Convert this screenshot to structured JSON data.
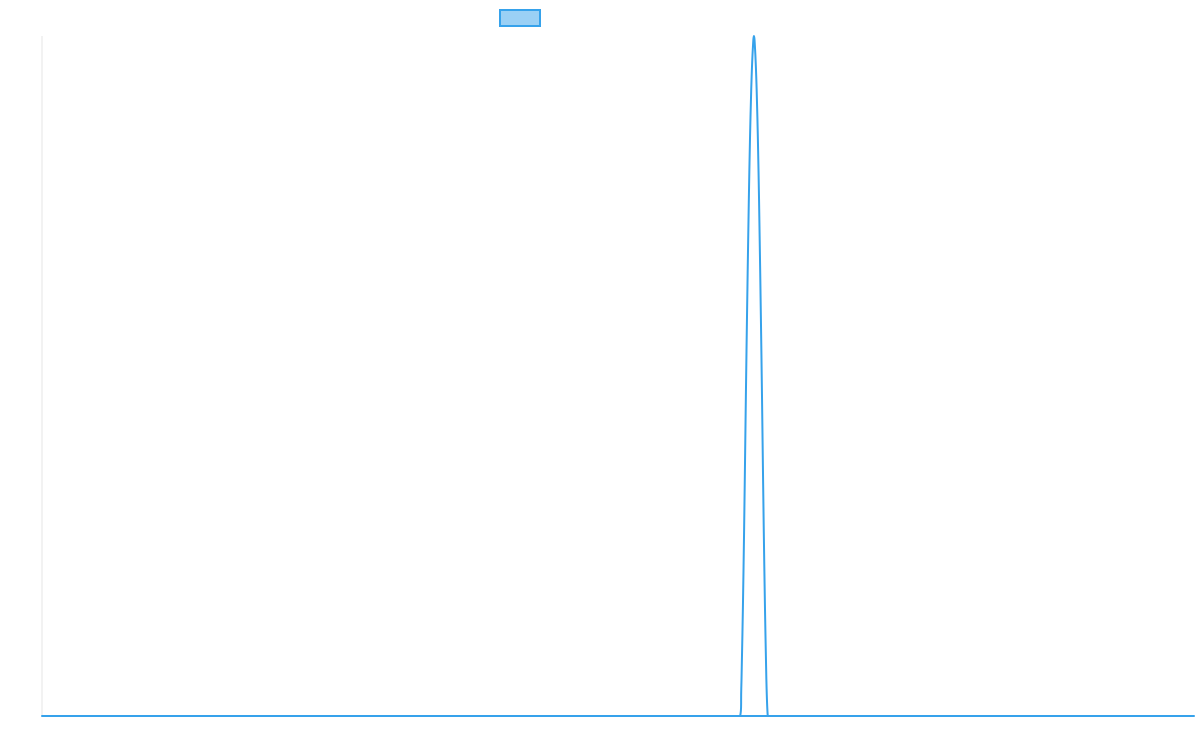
{
  "chart_data": {
    "type": "line",
    "x": [
      0,
      600,
      606,
      607,
      608,
      609,
      610,
      611,
      612,
      613,
      614,
      615,
      616,
      617,
      618,
      619,
      620,
      621,
      622,
      623,
      624,
      625,
      626,
      627,
      628,
      629,
      630,
      631,
      632,
      633,
      634,
      635,
      636,
      637,
      638,
      639,
      640,
      641,
      642,
      643,
      644,
      645,
      646,
      1000
    ],
    "xlim": [
      0,
      1000
    ],
    "ylim": [
      0,
      1
    ],
    "series": [
      {
        "name": "",
        "color": "#36a2eb",
        "fill": "#9ad0f5",
        "values": [
          0,
          0,
          0,
          0.04,
          0.12,
          0.22,
          0.34,
          0.47,
          0.59,
          0.7,
          0.8,
          0.88,
          0.94,
          0.98,
          1.0,
          0.98,
          0.94,
          0.88,
          0.8,
          0.7,
          0.59,
          0.47,
          0.34,
          0.22,
          0.12,
          0.04,
          0,
          0,
          0,
          0,
          0,
          0,
          0,
          0,
          0,
          0,
          0,
          0,
          0,
          0,
          0,
          0,
          0,
          0
        ]
      }
    ],
    "legend": {
      "position": "top",
      "entries": [
        ""
      ]
    },
    "grid": false,
    "title": "",
    "xlabel": "",
    "ylabel": ""
  }
}
